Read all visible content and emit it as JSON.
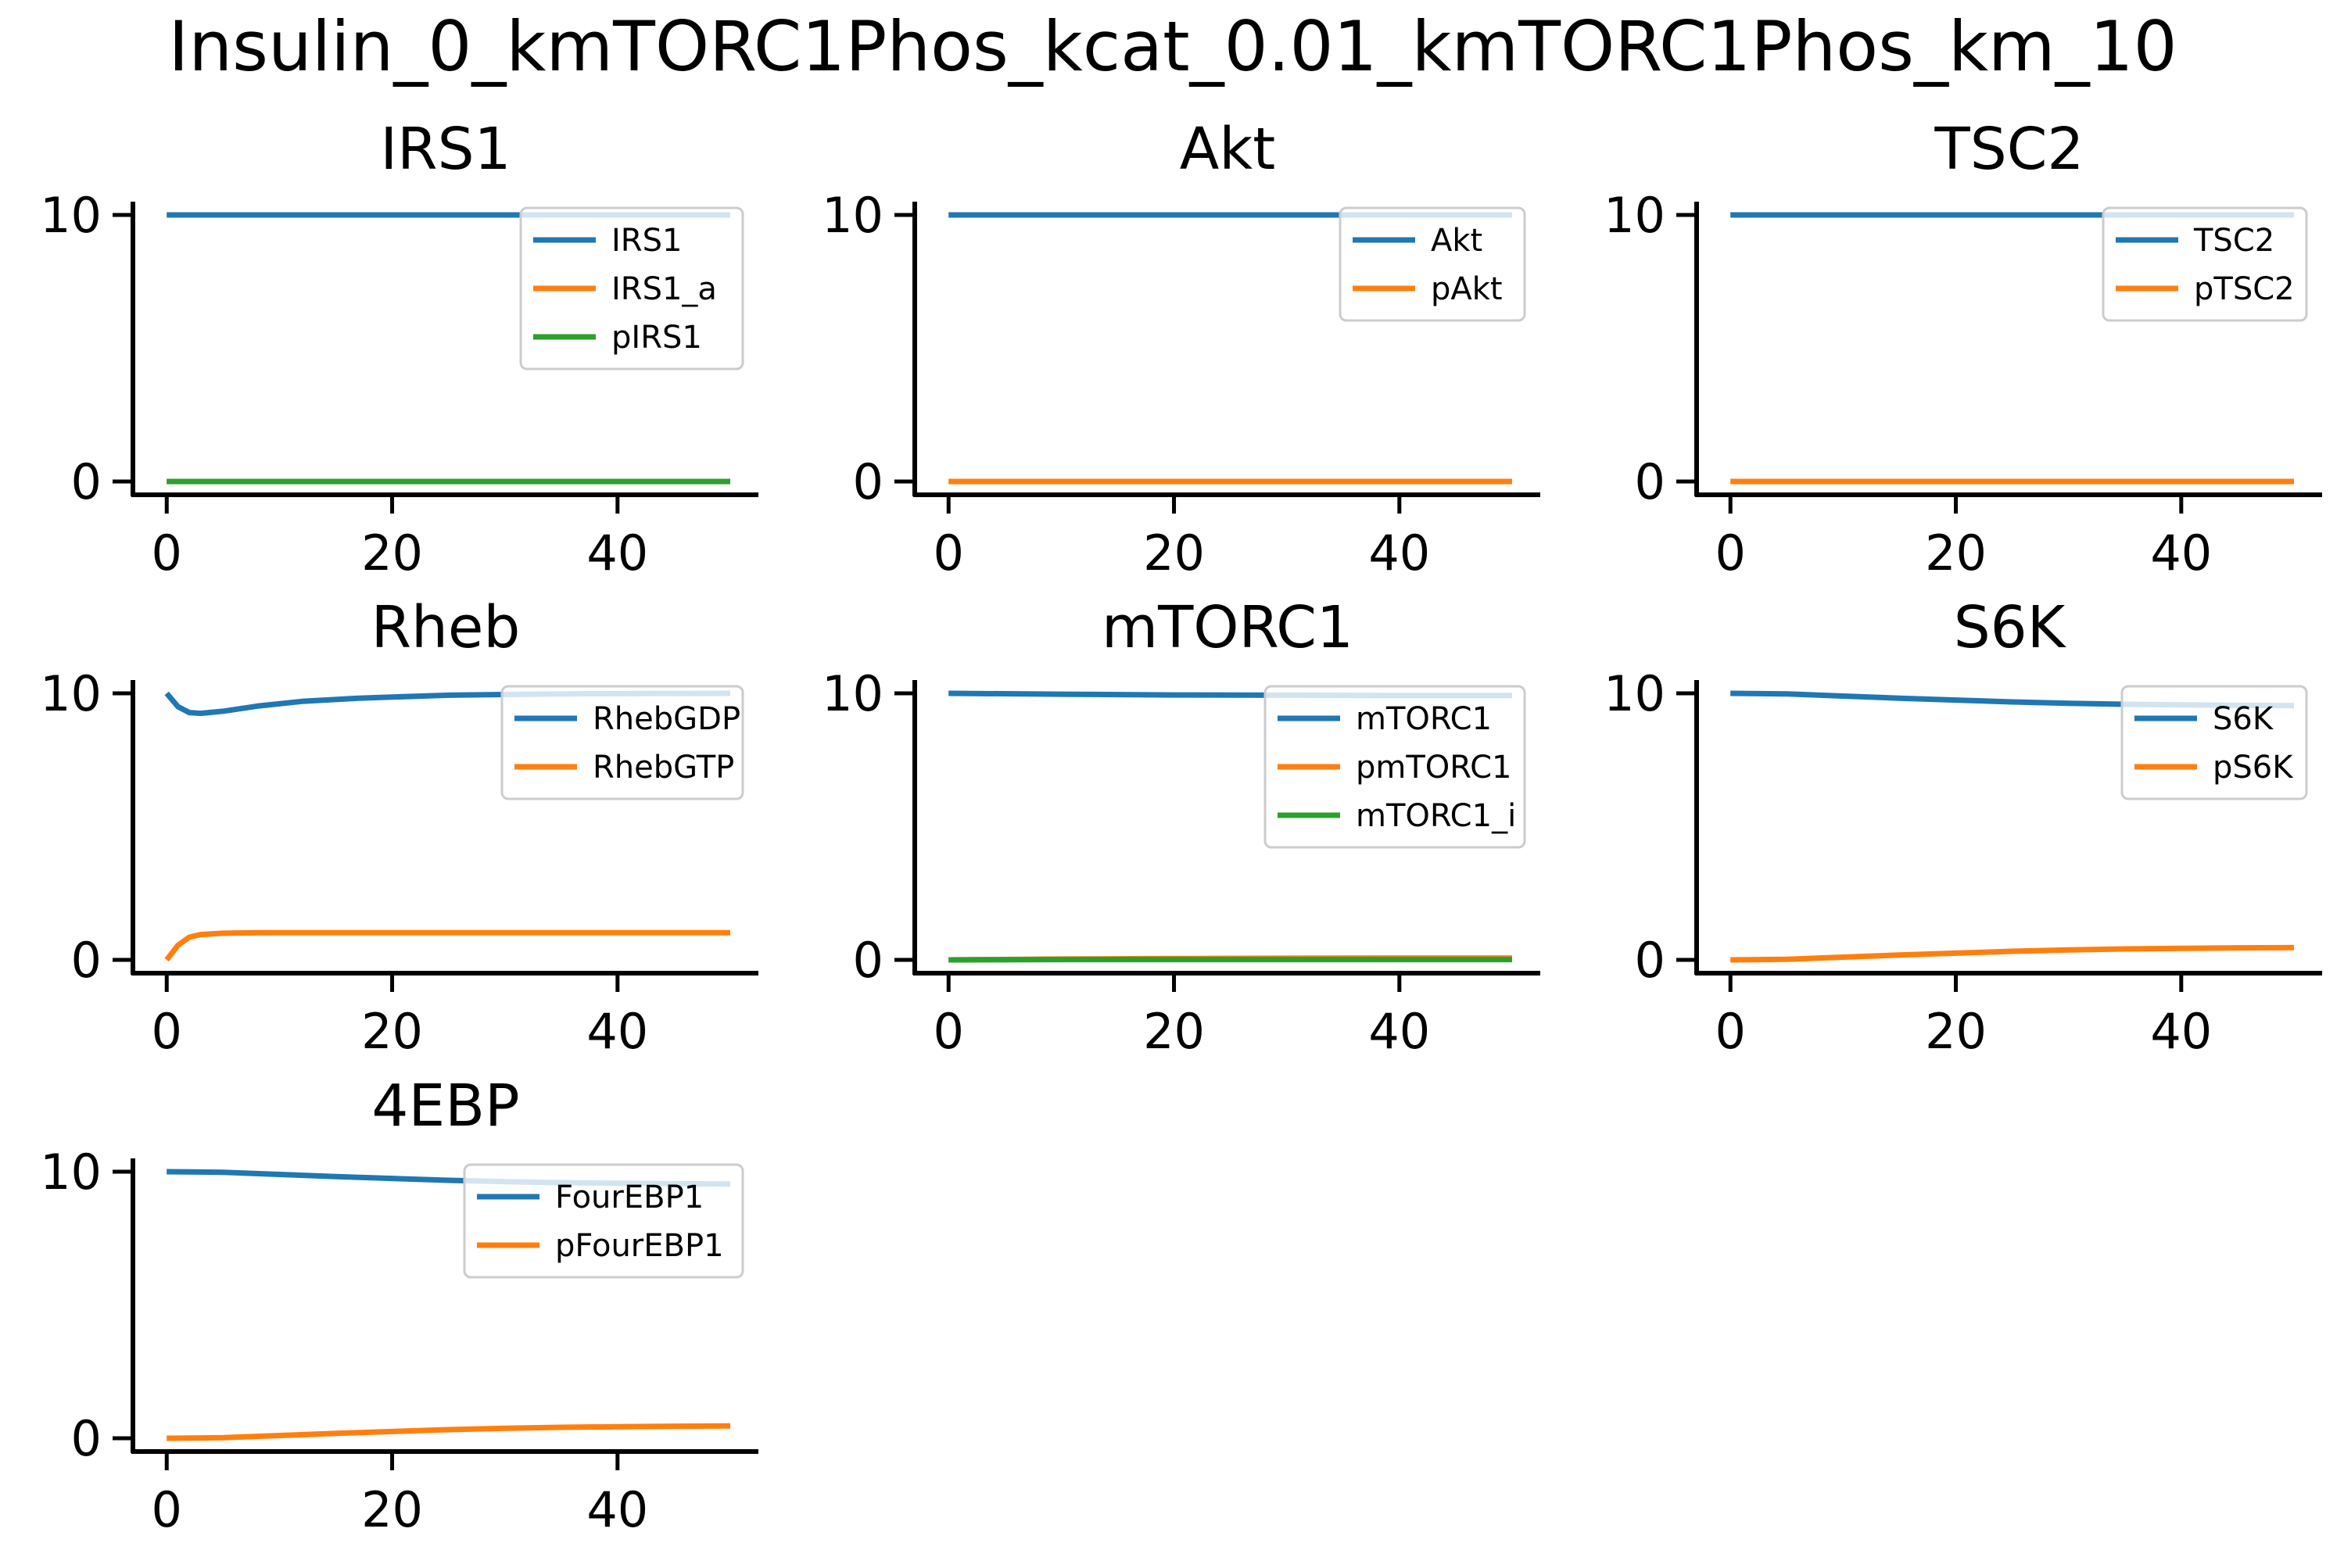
{
  "figure": {
    "title": "Insulin_0_kmTORC1Phos_kcat_0.01_kmTORC1Phos_km_10"
  },
  "colors": {
    "series1": "#1f77b4",
    "series2": "#ff7f0e",
    "series3": "#2ca02c"
  },
  "chart_data": [
    {
      "type": "line",
      "title": "IRS1",
      "xlim": [
        -3,
        52.5
      ],
      "ylim": [
        -0.5,
        10.5
      ],
      "xticks": [
        0,
        20,
        40
      ],
      "yticks": [
        0,
        10
      ],
      "legend_position": "upper right",
      "series": [
        {
          "name": "IRS1",
          "x": [
            0,
            50
          ],
          "y": [
            10,
            10
          ]
        },
        {
          "name": "IRS1_a",
          "x": [
            0,
            50
          ],
          "y": [
            0,
            0
          ]
        },
        {
          "name": "pIRS1",
          "x": [
            0,
            50
          ],
          "y": [
            0,
            0
          ]
        }
      ]
    },
    {
      "type": "line",
      "title": "Akt",
      "xlim": [
        -3,
        52.5
      ],
      "ylim": [
        -0.5,
        10.5
      ],
      "xticks": [
        0,
        20,
        40
      ],
      "yticks": [
        0,
        10
      ],
      "legend_position": "upper right",
      "series": [
        {
          "name": "Akt",
          "x": [
            0,
            50
          ],
          "y": [
            10,
            10
          ]
        },
        {
          "name": "pAkt",
          "x": [
            0,
            50
          ],
          "y": [
            0,
            0
          ]
        }
      ]
    },
    {
      "type": "line",
      "title": "TSC2",
      "xlim": [
        -3,
        52.5
      ],
      "ylim": [
        -0.5,
        10.5
      ],
      "xticks": [
        0,
        20,
        40
      ],
      "yticks": [
        0,
        10
      ],
      "legend_position": "upper right",
      "series": [
        {
          "name": "TSC2",
          "x": [
            0,
            50
          ],
          "y": [
            10,
            10
          ]
        },
        {
          "name": "pTSC2",
          "x": [
            0,
            50
          ],
          "y": [
            0,
            0
          ]
        }
      ]
    },
    {
      "type": "line",
      "title": "Rheb",
      "xlim": [
        -3,
        52.5
      ],
      "ylim": [
        -0.5,
        10.5
      ],
      "xticks": [
        0,
        20,
        40
      ],
      "yticks": [
        0,
        10
      ],
      "legend_position": "upper right",
      "series": [
        {
          "name": "RhebGDP",
          "x": [
            0,
            1,
            2,
            3,
            5,
            8,
            12,
            17,
            25,
            35,
            50
          ],
          "y": [
            10,
            9.5,
            9.28,
            9.25,
            9.33,
            9.52,
            9.7,
            9.82,
            9.93,
            9.98,
            10
          ]
        },
        {
          "name": "RhebGTP",
          "x": [
            0,
            1,
            2,
            3,
            5,
            8,
            12,
            17,
            25,
            35,
            50
          ],
          "y": [
            0,
            0.55,
            0.85,
            0.95,
            1.0,
            1.02,
            1.02,
            1.02,
            1.02,
            1.02,
            1.02
          ]
        }
      ]
    },
    {
      "type": "line",
      "title": "mTORC1",
      "xlim": [
        -3,
        52.5
      ],
      "ylim": [
        -0.5,
        10.5
      ],
      "xticks": [
        0,
        20,
        40
      ],
      "yticks": [
        0,
        10
      ],
      "legend_position": "upper right",
      "series": [
        {
          "name": "mTORC1",
          "x": [
            0,
            10,
            20,
            30,
            40,
            50
          ],
          "y": [
            10,
            9.97,
            9.94,
            9.93,
            9.92,
            9.92
          ]
        },
        {
          "name": "pmTORC1",
          "x": [
            0,
            10,
            20,
            30,
            40,
            50
          ],
          "y": [
            0,
            0.03,
            0.05,
            0.06,
            0.07,
            0.07
          ]
        },
        {
          "name": "mTORC1_i",
          "x": [
            0,
            10,
            20,
            30,
            40,
            50
          ],
          "y": [
            0,
            0.01,
            0.01,
            0.01,
            0.01,
            0.01
          ]
        }
      ]
    },
    {
      "type": "line",
      "title": "S6K",
      "xlim": [
        -3,
        52.5
      ],
      "ylim": [
        -0.5,
        10.5
      ],
      "xticks": [
        0,
        20,
        40
      ],
      "yticks": [
        0,
        10
      ],
      "legend_position": "upper right",
      "series": [
        {
          "name": "S6K",
          "x": [
            0,
            5,
            10,
            15,
            20,
            25,
            30,
            35,
            40,
            45,
            50
          ],
          "y": [
            10,
            9.98,
            9.9,
            9.82,
            9.75,
            9.68,
            9.63,
            9.59,
            9.57,
            9.55,
            9.54
          ]
        },
        {
          "name": "pS6K",
          "x": [
            0,
            5,
            10,
            15,
            20,
            25,
            30,
            35,
            40,
            45,
            50
          ],
          "y": [
            0,
            0.02,
            0.1,
            0.18,
            0.25,
            0.32,
            0.37,
            0.41,
            0.43,
            0.45,
            0.46
          ]
        }
      ]
    },
    {
      "type": "line",
      "title": "4EBP",
      "xlim": [
        -3,
        52.5
      ],
      "ylim": [
        -0.5,
        10.5
      ],
      "xticks": [
        0,
        20,
        40
      ],
      "yticks": [
        0,
        10
      ],
      "legend_position": "upper right",
      "series": [
        {
          "name": "FourEBP1",
          "x": [
            0,
            5,
            10,
            15,
            20,
            25,
            30,
            35,
            40,
            45,
            50
          ],
          "y": [
            10,
            9.98,
            9.9,
            9.82,
            9.75,
            9.68,
            9.63,
            9.59,
            9.57,
            9.55,
            9.54
          ]
        },
        {
          "name": "pFourEBP1",
          "x": [
            0,
            5,
            10,
            15,
            20,
            25,
            30,
            35,
            40,
            45,
            50
          ],
          "y": [
            0,
            0.02,
            0.1,
            0.18,
            0.25,
            0.32,
            0.37,
            0.41,
            0.43,
            0.45,
            0.46
          ]
        }
      ]
    }
  ]
}
